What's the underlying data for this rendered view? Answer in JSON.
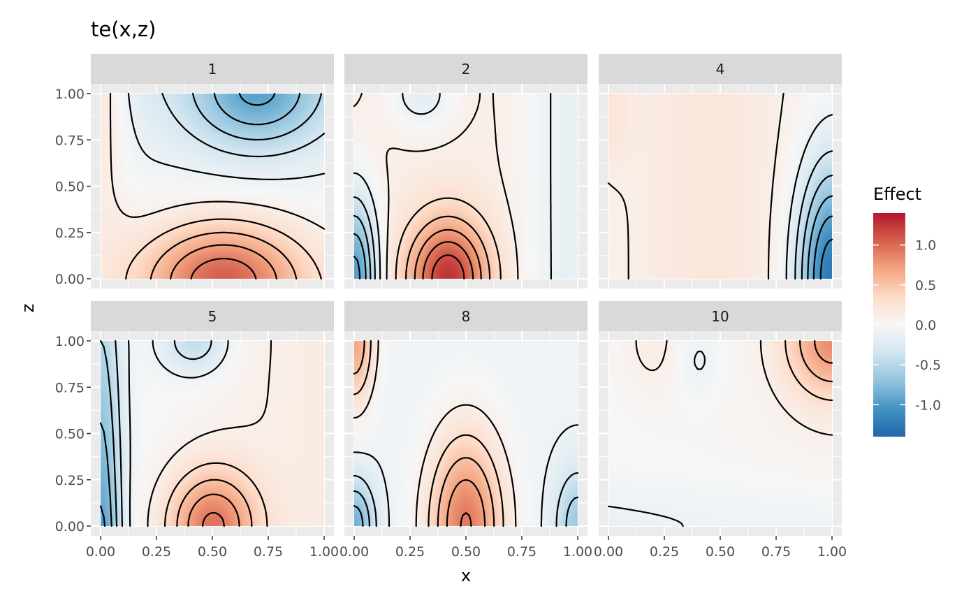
{
  "chart_data": {
    "type": "heatmap",
    "title": "te(x,z)",
    "xlabel": "x",
    "ylabel": "z",
    "xlim": [
      0,
      1
    ],
    "ylim": [
      0,
      1
    ],
    "x_ticks": [
      "0.00",
      "0.25",
      "0.50",
      "0.75",
      "1.00"
    ],
    "y_ticks": [
      "0.00",
      "0.25",
      "0.50",
      "0.75",
      "1.00"
    ],
    "facets": [
      "1",
      "2",
      "4",
      "5",
      "8",
      "10"
    ],
    "legend": {
      "title": "Effect",
      "ticks": [
        "1.0",
        "0.5",
        "0.0",
        "-0.5",
        "-1.0"
      ],
      "tick_values": [
        1.0,
        0.5,
        0.0,
        -0.5,
        -1.0
      ],
      "range": [
        -1.4,
        1.4
      ],
      "placement": "right",
      "colors": [
        "#2166ac",
        "#4393c3",
        "#92c5de",
        "#d1e5f0",
        "#f7f7f7",
        "#fddbc7",
        "#f4a582",
        "#d6604d",
        "#b2182b"
      ]
    },
    "contours": true
  },
  "colors": {
    "panel_bg": "#ebebeb",
    "strip_bg": "#d9d9d9",
    "grid": "#ffffff",
    "contour": "#000000"
  }
}
